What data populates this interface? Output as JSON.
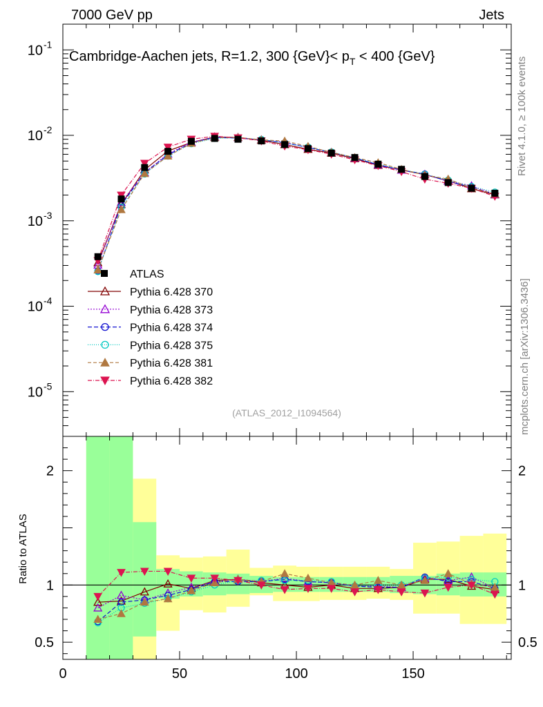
{
  "header": {
    "left": "7000 GeV pp",
    "right": "Jets"
  },
  "side_labels": {
    "rivet": "Rivet 4.1.0, ≥ 100k events",
    "mcplots": "mcplots.cern.ch [arXiv:1306.3436]"
  },
  "chart_data": {
    "type": "line",
    "title": "Cambridge-Aachen jets, R=1.2, 300 {GeV}< p_T < 400 {GeV}",
    "title_parts": {
      "main": "Cambridge-Aachen jets, R=1.2, 300 {GeV}< p",
      "sub": "T",
      "tail": " < 400 {GeV}"
    },
    "analysis_id": "(ATLAS_2012_I1094564)",
    "xlim": [
      0,
      192
    ],
    "ylim_main": [
      3e-06,
      0.2
    ],
    "yscale_main": "log",
    "ylim_ratio": [
      0.35,
      2.3
    ],
    "ylabel_ratio": "Ratio to ATLAS",
    "x_ticks": [
      0,
      50,
      100,
      150
    ],
    "x_tick_labels": [
      "0",
      "50",
      "100",
      "150"
    ],
    "y_ticks_main_labels": [
      {
        "base": "10",
        "exp": "-1",
        "value": 0.1
      },
      {
        "base": "10",
        "exp": "-2",
        "value": 0.01
      },
      {
        "base": "10",
        "exp": "-3",
        "value": 0.001
      },
      {
        "base": "10",
        "exp": "-4",
        "value": 0.0001
      },
      {
        "base": "10",
        "exp": "-5",
        "value": 1e-05
      }
    ],
    "y_ticks_ratio": [
      0.5,
      1,
      2
    ],
    "y_tick_labels_ratio": [
      "0.5",
      "1",
      "2"
    ],
    "x": [
      15,
      25,
      35,
      45,
      55,
      65,
      75,
      85,
      95,
      105,
      115,
      125,
      135,
      145,
      155,
      165,
      175,
      185
    ],
    "bin_edges": [
      10,
      20,
      30,
      40,
      50,
      60,
      70,
      80,
      90,
      100,
      110,
      120,
      130,
      140,
      150,
      160,
      170,
      180,
      190
    ],
    "data": {
      "name": "ATLAS",
      "values": [
        0.00038,
        0.0018,
        0.0042,
        0.0065,
        0.0085,
        0.0092,
        0.009,
        0.0086,
        0.0078,
        0.007,
        0.0062,
        0.0055,
        0.0046,
        0.004,
        0.0033,
        0.0028,
        0.0024,
        0.0021
      ],
      "band_green": [
        [
          0.3,
          2.3
        ],
        [
          0.3,
          2.3
        ],
        [
          0.55,
          1.55
        ],
        [
          0.88,
          1.14
        ],
        [
          0.9,
          1.12
        ],
        [
          0.91,
          1.11
        ],
        [
          0.92,
          1.1
        ],
        [
          0.93,
          1.08
        ],
        [
          0.94,
          1.07
        ],
        [
          0.94,
          1.07
        ],
        [
          0.94,
          1.07
        ],
        [
          0.94,
          1.07
        ],
        [
          0.94,
          1.07
        ],
        [
          0.93,
          1.08
        ],
        [
          0.92,
          1.08
        ],
        [
          0.91,
          1.1
        ],
        [
          0.9,
          1.11
        ],
        [
          0.9,
          1.11
        ]
      ],
      "band_yellow": [
        [
          0.3,
          2.3
        ],
        [
          0.3,
          2.3
        ],
        [
          0.3,
          1.93
        ],
        [
          0.6,
          1.26
        ],
        [
          0.78,
          1.24
        ],
        [
          0.76,
          1.25
        ],
        [
          0.81,
          1.31
        ],
        [
          0.91,
          1.15
        ],
        [
          0.86,
          1.17
        ],
        [
          0.86,
          1.16
        ],
        [
          0.87,
          1.16
        ],
        [
          0.87,
          1.16
        ],
        [
          0.88,
          1.16
        ],
        [
          0.87,
          1.14
        ],
        [
          0.75,
          1.37
        ],
        [
          0.75,
          1.38
        ],
        [
          0.66,
          1.43
        ],
        [
          0.66,
          1.45
        ]
      ]
    },
    "series": [
      {
        "name": "Pythia 6.428 370",
        "color": "#800000",
        "marker": "triangle-up-open",
        "dash": "",
        "ratio": [
          0.85,
          0.86,
          0.94,
          1.01,
          0.97,
          1.04,
          1.05,
          1.02,
          1.0,
          0.98,
          1.0,
          0.97,
          0.97,
          0.98,
          1.05,
          1.05,
          0.99,
          0.96
        ]
      },
      {
        "name": "Pythia 6.428 373",
        "color": "#9400d3",
        "marker": "triangle-up-open",
        "dash": "2,2",
        "ratio": [
          0.8,
          0.91,
          0.87,
          0.93,
          0.98,
          1.03,
          1.05,
          1.03,
          1.06,
          1.03,
          1.02,
          0.99,
          0.99,
          0.98,
          1.06,
          1.04,
          1.07,
          0.97
        ]
      },
      {
        "name": "Pythia 6.428 374",
        "color": "#1010d0",
        "marker": "circle-open",
        "dash": "6,3",
        "ratio": [
          0.68,
          0.85,
          0.87,
          0.91,
          0.96,
          1.03,
          1.03,
          1.03,
          1.05,
          1.03,
          1.02,
          0.99,
          0.98,
          0.98,
          1.07,
          1.03,
          1.03,
          0.97
        ]
      },
      {
        "name": "Pythia 6.428 375",
        "color": "#00c8c0",
        "marker": "circle-open",
        "dash": "1,2",
        "ratio": [
          0.67,
          0.8,
          0.84,
          0.88,
          0.94,
          1.0,
          1.04,
          1.04,
          1.04,
          1.04,
          1.03,
          0.99,
          1.0,
          1.0,
          1.06,
          1.07,
          1.05,
          1.03
        ]
      },
      {
        "name": "Pythia 6.428 381",
        "color": "#b07840",
        "marker": "triangle-up-filled",
        "dash": "5,3",
        "ratio": [
          0.7,
          0.75,
          0.85,
          0.88,
          0.95,
          1.02,
          1.05,
          1.03,
          1.1,
          1.06,
          1.02,
          1.0,
          1.04,
          1.0,
          1.04,
          1.1,
          1.01,
          0.98
        ]
      },
      {
        "name": "Pythia 6.428 382",
        "color": "#dc1450",
        "marker": "triangle-down-filled",
        "dash": "6,2,1,2",
        "ratio": [
          0.9,
          1.11,
          1.12,
          1.12,
          1.06,
          1.06,
          1.04,
          1.0,
          0.96,
          0.97,
          0.97,
          0.94,
          0.96,
          0.94,
          0.93,
          0.98,
          1.0,
          0.92
        ]
      }
    ]
  }
}
